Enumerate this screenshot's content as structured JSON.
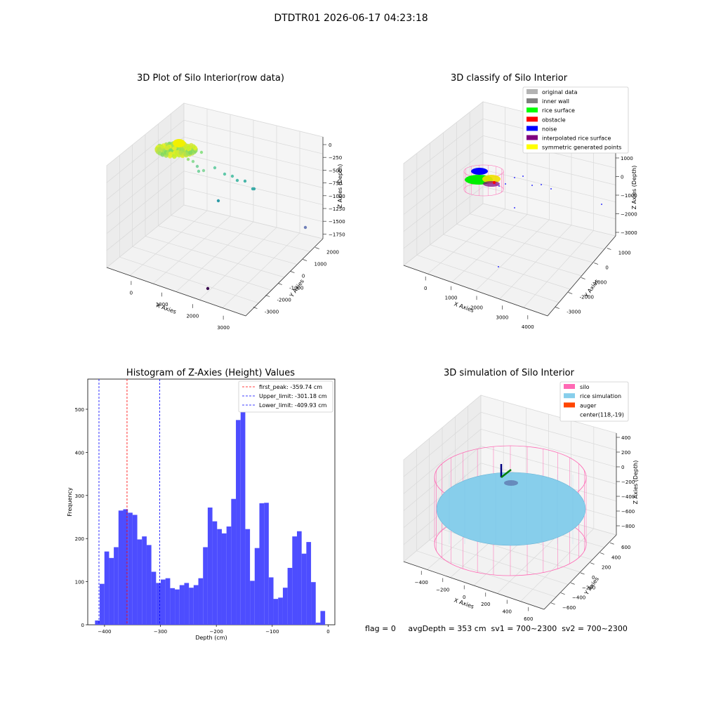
{
  "figure": {
    "suptitle": "DTDTR01 2026-06-17 04:23:18",
    "footer": "flag = 0     avgDepth = 353 cm  sv1 = 700~2300  sv2 = 700~2300"
  },
  "chart_data": [
    {
      "type": "scatter",
      "dimension": "3d",
      "title": "3D Plot of Silo Interior(row data)",
      "xlabel": "X Axies",
      "ylabel": "Y Axies",
      "zlabel": "Z Axies (Depth)",
      "xticks": [
        "0",
        "1000",
        "2000",
        "3000"
      ],
      "yticks": [
        "-3000",
        "-2000",
        "-1000",
        "0",
        "1000",
        "2000"
      ],
      "zticks": [
        "0",
        "−250",
        "−500",
        "−750",
        "−1000",
        "−1250",
        "−1500",
        "−1750"
      ],
      "points": [
        {
          "x": 0,
          "y": 1800,
          "z": -250
        },
        {
          "x": 300,
          "y": 1600,
          "z": -300
        },
        {
          "x": 500,
          "y": 1400,
          "z": -350
        },
        {
          "x": 700,
          "y": 1300,
          "z": -400
        },
        {
          "x": 900,
          "y": 1000,
          "z": -450
        },
        {
          "x": 1200,
          "y": 800,
          "z": -500
        },
        {
          "x": 1500,
          "y": 600,
          "z": -550
        },
        {
          "x": 1800,
          "y": 400,
          "z": -600
        },
        {
          "x": 2100,
          "y": 200,
          "z": -650
        },
        {
          "x": 1200,
          "y": -200,
          "z": -900
        },
        {
          "x": 3400,
          "y": -1600,
          "z": -900
        },
        {
          "x": 1900,
          "y": -2000,
          "z": -1800
        }
      ]
    },
    {
      "type": "scatter",
      "dimension": "3d",
      "title": "3D classify of Silo Interior",
      "xlabel": "X Axies",
      "ylabel": "Y Axies",
      "zlabel": "Z Axies (Depth)",
      "xticks": [
        "0",
        "1000",
        "2000",
        "3000",
        "4000"
      ],
      "yticks": [
        "-3000",
        "-2000",
        "-1000",
        "0",
        "1000"
      ],
      "zticks": [
        "1000",
        "0",
        "−1000",
        "−2000",
        "−3000"
      ],
      "legend": [
        {
          "label": "original data",
          "color": "#b3b3b3"
        },
        {
          "label": "inner wall",
          "color": "#808080"
        },
        {
          "label": "rice surface",
          "color": "#00ff00"
        },
        {
          "label": "obstacle",
          "color": "#ff0000"
        },
        {
          "label": "noise",
          "color": "#0000ff"
        },
        {
          "label": "interpolated rice surface",
          "color": "#800080"
        },
        {
          "label": "symmetric generated points",
          "color": "#ffff00"
        }
      ],
      "legend_position": "top-right"
    },
    {
      "type": "bar",
      "title": "Histogram of Z-Axies (Height) Values",
      "xlabel": "Depth (cm)",
      "ylabel": "Frequency",
      "xlim": [
        -430,
        12
      ],
      "ylim": [
        0,
        570
      ],
      "xticks": [
        -400,
        -300,
        -200,
        -100,
        0
      ],
      "xtick_labels": [
        "−400",
        "−300",
        "−200",
        "−100",
        "0"
      ],
      "yticks": [
        0,
        100,
        200,
        300,
        400,
        500
      ],
      "bin_start": -417,
      "bin_width": 8.4,
      "color": "#4d4dff",
      "values": [
        10,
        95,
        170,
        155,
        180,
        265,
        268,
        260,
        255,
        198,
        205,
        185,
        123,
        97,
        105,
        108,
        85,
        82,
        92,
        97,
        86,
        92,
        108,
        180,
        272,
        240,
        222,
        212,
        228,
        292,
        475,
        545,
        222,
        102,
        178,
        282,
        283,
        110,
        60,
        63,
        86,
        132,
        205,
        217,
        165,
        192,
        99,
        5,
        32
      ],
      "vlines": [
        {
          "x": -359.74,
          "color": "#ff0000",
          "label": "first_peak: -359.74 cm"
        },
        {
          "x": -301.18,
          "color": "#0000ff",
          "label": "Upper_limit: -301.18 cm"
        },
        {
          "x": -409.93,
          "color": "#0000ff",
          "label": "Lower_limit: -409.93 cm"
        }
      ],
      "legend_position": "top-right"
    },
    {
      "type": "scatter",
      "dimension": "3d",
      "title": "3D simulation of Silo Interior",
      "xlabel": "X Axies",
      "ylabel": "Y Axies",
      "zlabel": "Z Axies (Depth)",
      "xticks": [
        "−400",
        "−200",
        "0",
        "200",
        "400",
        "600"
      ],
      "yticks": [
        "−600",
        "−400",
        "−200",
        "0",
        "200",
        "400",
        "600"
      ],
      "zticks": [
        "400",
        "200",
        "0",
        "−200",
        "−400",
        "−600",
        "−800"
      ],
      "legend": [
        {
          "label": "silo",
          "color": "#ff69b4"
        },
        {
          "label": "rice simulation",
          "color": "#87ceeb"
        },
        {
          "label": "auger",
          "color": "#ff4500"
        },
        {
          "label": "center(118,-19)",
          "color": ""
        }
      ],
      "legend_position": "top-right"
    }
  ]
}
